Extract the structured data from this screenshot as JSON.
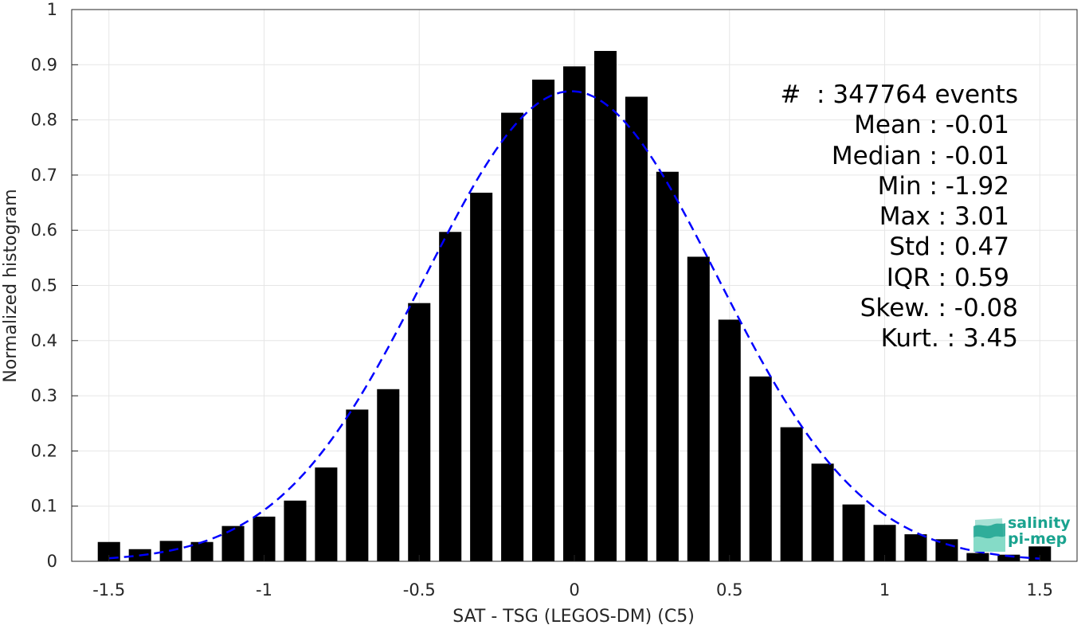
{
  "chart_data": {
    "type": "bar",
    "xlabel": "SAT - TSG (LEGOS-DM) (C5)",
    "ylabel": "Normalized histogram",
    "xlim": [
      -1.62,
      1.62
    ],
    "ylim": [
      0,
      1
    ],
    "xticks": [
      -1.5,
      -1,
      -0.5,
      0,
      0.5,
      1,
      1.5
    ],
    "xtick_labels": [
      "-1.5",
      "-1",
      "-0.5",
      "0",
      "0.5",
      "1",
      "1.5"
    ],
    "yticks": [
      0,
      0.1,
      0.2,
      0.3,
      0.4,
      0.5,
      0.6,
      0.7,
      0.8,
      0.9,
      1
    ],
    "ytick_labels": [
      "0",
      "0.1",
      "0.2",
      "0.3",
      "0.4",
      "0.5",
      "0.6",
      "0.7",
      "0.8",
      "0.9",
      "1"
    ],
    "grid": true,
    "bar_color": "#000000",
    "bin_width": 0.1,
    "bins": [
      -1.5,
      -1.4,
      -1.3,
      -1.2,
      -1.1,
      -1.0,
      -0.9,
      -0.8,
      -0.7,
      -0.6,
      -0.5,
      -0.4,
      -0.3,
      -0.2,
      -0.1,
      0.0,
      0.1,
      0.2,
      0.3,
      0.4,
      0.5,
      0.6,
      0.7,
      0.8,
      0.9,
      1.0,
      1.1,
      1.2,
      1.3,
      1.4,
      1.5
    ],
    "values": [
      0.035,
      0.022,
      0.037,
      0.035,
      0.064,
      0.081,
      0.11,
      0.17,
      0.275,
      0.312,
      0.468,
      0.597,
      0.668,
      0.813,
      0.873,
      0.897,
      0.925,
      0.842,
      0.706,
      0.552,
      0.438,
      0.335,
      0.243,
      0.177,
      0.103,
      0.066,
      0.049,
      0.04,
      0.015,
      0.012,
      0.027
    ],
    "fit_curve": {
      "style": "dashed",
      "color": "#0000ff",
      "mean": -0.01,
      "std": 0.47,
      "peak": 0.852
    }
  },
  "stats": {
    "count_line": "#  : 347764 events",
    "mean_line": "Mean : -0.01",
    "median_line": "Median : -0.01",
    "min_line": "Min : -1.92",
    "max_line": "Max : 3.01",
    "std_line": "Std : 0.47",
    "iqr_line": "IQR : 0.59",
    "skew_line": "Skew. : -0.08",
    "kurt_line": "Kurt. : 3.45"
  },
  "logo": {
    "line1": "salinity",
    "line2": "pi-mep",
    "color": "#1aa38f"
  }
}
